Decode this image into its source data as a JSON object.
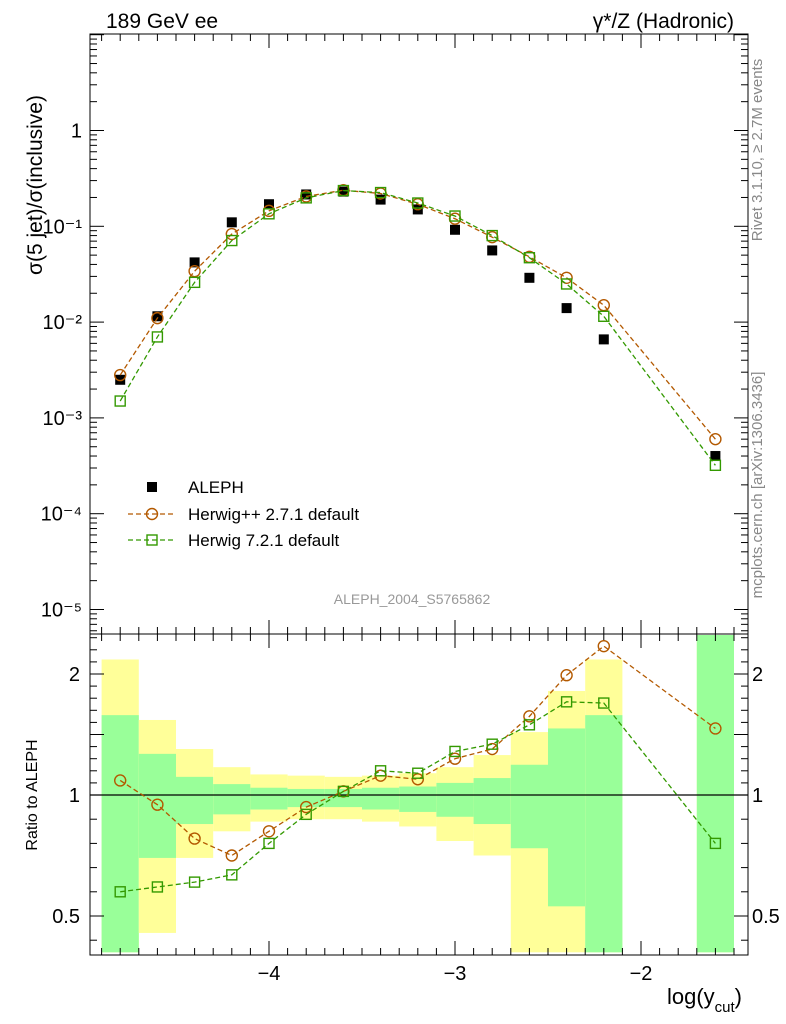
{
  "header": {
    "left": "189 GeV ee",
    "right": "γ*/Z (Hadronic)"
  },
  "side": {
    "rivet": "Rivet 3.1.10, ≥ 2.7M events",
    "mcplots": "mcplots.cern.ch [arXiv:1306.3436]"
  },
  "watermark": "ALEPH_2004_S5765862",
  "chart_data": {
    "type": "scatter",
    "title": "189 GeV ee",
    "xlabel": "log(y_cut)",
    "ylabel": "σ(5 jet)/σ(inclusive)",
    "ratio_ylabel": "Ratio to ALEPH",
    "xlim": [
      -4.95,
      -1.45
    ],
    "ylim": [
      5e-06,
      5
    ],
    "ratio_ylim": [
      0.35,
      2.35
    ],
    "x_ticks": [
      {
        "value": -4,
        "label": "−4"
      },
      {
        "value": -3,
        "label": "−3"
      },
      {
        "value": -2,
        "label": "−2"
      }
    ],
    "y_ticks": [
      {
        "value": 1,
        "label": "1"
      },
      {
        "value": 0.1,
        "label": "10⁻¹"
      },
      {
        "value": 0.01,
        "label": "10⁻²"
      },
      {
        "value": 0.001,
        "label": "10⁻³"
      },
      {
        "value": 0.0001,
        "label": "10⁻⁴"
      },
      {
        "value": 1e-05,
        "label": "10⁻⁵"
      }
    ],
    "ratio_ticks": [
      {
        "value": 2,
        "label": "2"
      },
      {
        "value": 1,
        "label": "1"
      },
      {
        "value": 0.5,
        "label": "0.5"
      }
    ],
    "x": [
      -4.8,
      -4.6,
      -4.4,
      -4.2,
      -4.0,
      -3.8,
      -3.6,
      -3.4,
      -3.2,
      -3.0,
      -2.8,
      -2.6,
      -2.4,
      -2.2,
      -1.6
    ],
    "series": [
      {
        "name": "ALEPH",
        "color": "#000000",
        "marker": "filled-square",
        "values": [
          0.0025,
          0.0115,
          0.042,
          0.11,
          0.17,
          0.215,
          0.23,
          0.19,
          0.15,
          0.092,
          0.056,
          0.029,
          0.014,
          0.0066,
          0.0004
        ]
      },
      {
        "name": "Herwig++ 2.7.1 default",
        "color": "#b35900",
        "marker": "open-circle",
        "values": [
          0.0028,
          0.011,
          0.034,
          0.083,
          0.145,
          0.205,
          0.238,
          0.22,
          0.17,
          0.12,
          0.077,
          0.048,
          0.029,
          0.015,
          0.0006
        ]
      },
      {
        "name": "Herwig 7.2.1 default",
        "color": "#339900",
        "marker": "open-square",
        "values": [
          0.0015,
          0.007,
          0.026,
          0.071,
          0.135,
          0.198,
          0.236,
          0.225,
          0.175,
          0.128,
          0.08,
          0.047,
          0.025,
          0.0115,
          0.00032
        ]
      }
    ],
    "ratio_series": [
      {
        "name": "Herwig++ 2.7.1 default",
        "color": "#b35900",
        "marker": "open-circle",
        "values": [
          1.12,
          0.96,
          0.82,
          0.75,
          0.85,
          0.95,
          1.03,
          1.16,
          1.13,
          1.3,
          1.38,
          1.65,
          1.99,
          2.23,
          1.55
        ]
      },
      {
        "name": "Herwig 7.2.1 default",
        "color": "#339900",
        "marker": "open-square",
        "values": [
          0.6,
          0.62,
          0.64,
          0.67,
          0.8,
          0.92,
          1.03,
          1.2,
          1.18,
          1.36,
          1.42,
          1.58,
          1.77,
          1.76,
          0.8
        ]
      }
    ],
    "bands": {
      "bins": [
        {
          "lo": -4.9,
          "hi": -4.7,
          "stat": [
            0.35,
            1.66
          ],
          "total": [
            0.35,
            2.12
          ]
        },
        {
          "lo": -4.7,
          "hi": -4.5,
          "stat": [
            0.74,
            1.34
          ],
          "total": [
            0.43,
            1.62
          ]
        },
        {
          "lo": -4.5,
          "hi": -4.3,
          "stat": [
            0.88,
            1.15
          ],
          "total": [
            0.74,
            1.38
          ]
        },
        {
          "lo": -4.3,
          "hi": -4.1,
          "stat": [
            0.92,
            1.09
          ],
          "total": [
            0.85,
            1.23
          ]
        },
        {
          "lo": -4.1,
          "hi": -3.9,
          "stat": [
            0.94,
            1.06
          ],
          "total": [
            0.89,
            1.17
          ]
        },
        {
          "lo": -3.9,
          "hi": -3.7,
          "stat": [
            0.95,
            1.05
          ],
          "total": [
            0.9,
            1.16
          ]
        },
        {
          "lo": -3.7,
          "hi": -3.5,
          "stat": [
            0.95,
            1.05
          ],
          "total": [
            0.9,
            1.15
          ]
        },
        {
          "lo": -3.5,
          "hi": -3.3,
          "stat": [
            0.94,
            1.06
          ],
          "total": [
            0.89,
            1.16
          ]
        },
        {
          "lo": -3.3,
          "hi": -3.1,
          "stat": [
            0.93,
            1.07
          ],
          "total": [
            0.87,
            1.18
          ]
        },
        {
          "lo": -3.1,
          "hi": -2.9,
          "stat": [
            0.91,
            1.1
          ],
          "total": [
            0.81,
            1.23
          ]
        },
        {
          "lo": -2.9,
          "hi": -2.7,
          "stat": [
            0.88,
            1.14
          ],
          "total": [
            0.75,
            1.33
          ]
        },
        {
          "lo": -2.7,
          "hi": -2.5,
          "stat": [
            0.78,
            1.25
          ],
          "total": [
            0.35,
            1.52
          ]
        },
        {
          "lo": -2.5,
          "hi": -2.3,
          "stat": [
            0.54,
            1.55
          ],
          "total": [
            0.35,
            1.86
          ]
        },
        {
          "lo": -2.3,
          "hi": -2.1,
          "stat": [
            0.35,
            1.66
          ],
          "total": [
            0.35,
            2.12
          ]
        },
        {
          "lo": -1.7,
          "hi": -1.5,
          "stat": [
            0.35,
            2.35
          ],
          "total": [
            0.35,
            2.35
          ]
        }
      ],
      "stat_color": "#99ff99",
      "total_color": "#ffff99"
    },
    "legend": "lower-left"
  }
}
